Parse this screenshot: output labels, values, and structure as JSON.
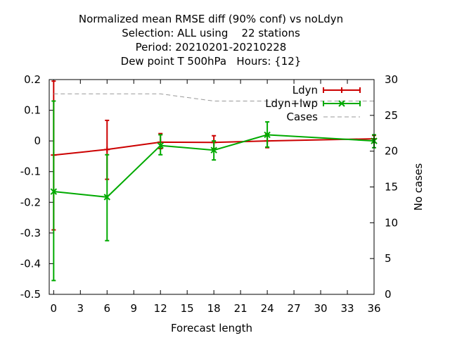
{
  "chart_data": {
    "type": "line",
    "title_lines": [
      "Normalized mean RMSE diff (90% conf) vs noLdyn",
      "Selection: ALL using    22 stations",
      "Period: 20210201-20210228",
      "Dew point T 500hPa   Hours: {12}"
    ],
    "xlabel": "Forecast length",
    "ylabel": "",
    "y2label": "No cases",
    "xlim": [
      -0.5,
      36
    ],
    "ylim": [
      -0.5,
      0.2
    ],
    "y2lim": [
      0,
      30
    ],
    "xticks": [
      "0",
      "3",
      "6",
      "9",
      "12",
      "15",
      "18",
      "21",
      "24",
      "27",
      "30",
      "33",
      "36"
    ],
    "yticks": [
      "0.2",
      "0.1",
      "0",
      "-0.1",
      "-0.2",
      "-0.3",
      "-0.4",
      "-0.5"
    ],
    "y2ticks": [
      "30",
      "25",
      "20",
      "15",
      "10",
      "5",
      "0"
    ],
    "legend_position": "top-right",
    "series": [
      {
        "name": "Ldyn",
        "color": "#cc0000",
        "marker": "plus",
        "x": [
          0,
          6,
          12,
          18,
          24,
          36
        ],
        "y": [
          -0.046,
          -0.028,
          -0.004,
          -0.005,
          0.0,
          0.007
        ],
        "err_low": [
          -0.29,
          -0.125,
          -0.025,
          -0.025,
          -0.022,
          -0.005
        ],
        "err_high": [
          0.195,
          0.067,
          0.024,
          0.017,
          0.022,
          0.018
        ]
      },
      {
        "name": "Ldyn+lwp",
        "color": "#00aa00",
        "marker": "cross",
        "x": [
          0,
          6,
          12,
          18,
          24,
          36
        ],
        "y": [
          -0.165,
          -0.183,
          -0.015,
          -0.03,
          0.02,
          0.0
        ],
        "err_low": [
          -0.455,
          -0.325,
          -0.045,
          -0.062,
          -0.02,
          -0.022
        ],
        "err_high": [
          0.13,
          -0.045,
          0.02,
          0.0,
          0.062,
          0.02
        ]
      },
      {
        "name": "Cases",
        "color": "#999999",
        "axis": "right",
        "style": "dashed",
        "x": [
          0,
          6,
          12,
          18,
          24,
          36
        ],
        "y": [
          28,
          28,
          28,
          27,
          27,
          27
        ]
      }
    ]
  }
}
